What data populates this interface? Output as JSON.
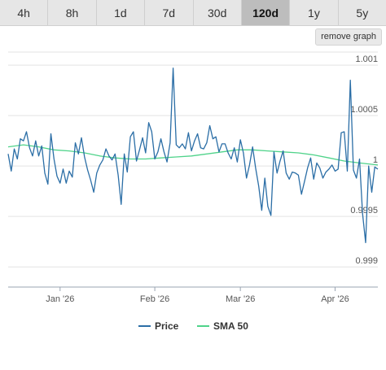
{
  "range_tabs": [
    {
      "label": "4h",
      "active": false
    },
    {
      "label": "8h",
      "active": false
    },
    {
      "label": "1d",
      "active": false
    },
    {
      "label": "7d",
      "active": false
    },
    {
      "label": "30d",
      "active": false
    },
    {
      "label": "120d",
      "active": true
    },
    {
      "label": "1y",
      "active": false
    },
    {
      "label": "5y",
      "active": false
    }
  ],
  "remove_graph_label": "remove graph",
  "colors": {
    "price": "#2b6ea6",
    "sma": "#4fd38a",
    "grid": "#e3e3e3",
    "active_tab": "#bdbdbd"
  },
  "chart_data": {
    "type": "line",
    "title": "",
    "xlabel": "",
    "ylabel": "",
    "ylim": [
      0.9988,
      1.00113
    ],
    "y_ticks": [
      {
        "value": 1.001,
        "label": "1.001"
      },
      {
        "value": 1.0005,
        "label": "1.0005"
      },
      {
        "value": 1.0,
        "label": "1"
      },
      {
        "value": 0.9995,
        "label": "0.9995"
      },
      {
        "value": 0.999,
        "label": "0.999"
      }
    ],
    "xlim": [
      "2025-12-15",
      "2026-04-15"
    ],
    "x_ticks": [
      {
        "date": "2026-01-01",
        "label": "Jan '26"
      },
      {
        "date": "2026-02-01",
        "label": "Feb '26"
      },
      {
        "date": "2026-03-01",
        "label": "Mar '26"
      },
      {
        "date": "2026-04-01",
        "label": "Apr '26"
      }
    ],
    "legend_position": "bottom",
    "series": [
      {
        "name": "Price",
        "x": [
          "2025-12-15",
          "2025-12-16",
          "2025-12-17",
          "2025-12-18",
          "2025-12-19",
          "2025-12-20",
          "2025-12-21",
          "2025-12-22",
          "2025-12-23",
          "2025-12-24",
          "2025-12-25",
          "2025-12-26",
          "2025-12-27",
          "2025-12-28",
          "2025-12-29",
          "2025-12-30",
          "2025-12-31",
          "2026-01-01",
          "2026-01-02",
          "2026-01-03",
          "2026-01-04",
          "2026-01-05",
          "2026-01-06",
          "2026-01-07",
          "2026-01-08",
          "2026-01-09",
          "2026-01-10",
          "2026-01-11",
          "2026-01-12",
          "2026-01-13",
          "2026-01-14",
          "2026-01-15",
          "2026-01-16",
          "2026-01-17",
          "2026-01-18",
          "2026-01-19",
          "2026-01-20",
          "2026-01-21",
          "2026-01-22",
          "2026-01-23",
          "2026-01-24",
          "2026-01-25",
          "2026-01-26",
          "2026-01-27",
          "2026-01-28",
          "2026-01-29",
          "2026-01-30",
          "2026-01-31",
          "2026-02-01",
          "2026-02-02",
          "2026-02-03",
          "2026-02-04",
          "2026-02-05",
          "2026-02-06",
          "2026-02-07",
          "2026-02-08",
          "2026-02-09",
          "2026-02-10",
          "2026-02-11",
          "2026-02-12",
          "2026-02-13",
          "2026-02-14",
          "2026-02-15",
          "2026-02-16",
          "2026-02-17",
          "2026-02-18",
          "2026-02-19",
          "2026-02-20",
          "2026-02-21",
          "2026-02-22",
          "2026-02-23",
          "2026-02-24",
          "2026-02-25",
          "2026-02-26",
          "2026-02-27",
          "2026-02-28",
          "2026-03-01",
          "2026-03-02",
          "2026-03-03",
          "2026-03-04",
          "2026-03-05",
          "2026-03-06",
          "2026-03-07",
          "2026-03-08",
          "2026-03-09",
          "2026-03-10",
          "2026-03-11",
          "2026-03-12",
          "2026-03-13",
          "2026-03-14",
          "2026-03-15",
          "2026-03-16",
          "2026-03-17",
          "2026-03-18",
          "2026-03-19",
          "2026-03-20",
          "2026-03-21",
          "2026-03-22",
          "2026-03-23",
          "2026-03-24",
          "2026-03-25",
          "2026-03-26",
          "2026-03-27",
          "2026-03-28",
          "2026-03-29",
          "2026-03-30",
          "2026-03-31",
          "2026-04-01",
          "2026-04-02",
          "2026-04-03",
          "2026-04-04",
          "2026-04-05",
          "2026-04-06",
          "2026-04-07",
          "2026-04-08",
          "2026-04-09",
          "2026-04-10",
          "2026-04-11",
          "2026-04-12",
          "2026-04-13",
          "2026-04-14",
          "2026-04-15"
        ],
        "values": [
          1.00012,
          0.99995,
          1.00017,
          1.00007,
          1.00027,
          1.00025,
          1.00034,
          1.00018,
          1.0001,
          1.00025,
          1.0001,
          1.0002,
          0.99993,
          0.99982,
          1.00032,
          1.00007,
          0.9999,
          0.99983,
          0.99997,
          0.99983,
          0.99995,
          0.99989,
          1.00023,
          1.00012,
          1.00028,
          1.00009,
          0.99996,
          0.99986,
          0.99974,
          0.99993,
          1.00001,
          1.00006,
          1.00017,
          1.0001,
          1.00006,
          1.00012,
          0.99991,
          0.99962,
          1.00012,
          0.99994,
          1.00029,
          1.00034,
          1.00005,
          1.00016,
          1.00028,
          1.00013,
          1.00043,
          1.00034,
          1.00007,
          1.00014,
          1.00027,
          1.00014,
          1.00004,
          1.00023,
          1.00097,
          1.00021,
          1.00018,
          1.00022,
          1.00017,
          1.00033,
          1.00015,
          1.00025,
          1.00032,
          1.00018,
          1.00017,
          1.00023,
          1.0004,
          1.00027,
          1.00029,
          1.00014,
          1.00022,
          1.00022,
          1.00013,
          1.00007,
          1.00018,
          1.00004,
          1.00026,
          1.00013,
          0.99988,
          1.00001,
          1.00019,
          0.99998,
          0.9998,
          0.99956,
          0.99988,
          0.9996,
          0.99951,
          1.00014,
          0.99993,
          1.00005,
          1.00015,
          0.99993,
          0.99987,
          0.99994,
          0.99993,
          0.99991,
          0.99972,
          0.99985,
          0.99998,
          1.00008,
          0.99987,
          1.00003,
          0.99998,
          0.99988,
          0.99994,
          0.99997,
          1.00001,
          0.99995,
          0.99997,
          1.00033,
          1.00034,
          0.99995,
          1.00085,
          0.99996,
          0.99988,
          1.00007,
          0.99953,
          0.99924,
          1.0,
          0.99974,
          0.99999,
          0.99997
        ]
      },
      {
        "name": "SMA 50",
        "x": [
          "2025-12-15",
          "2025-12-20",
          "2025-12-25",
          "2025-12-30",
          "2026-01-04",
          "2026-01-09",
          "2026-01-14",
          "2026-01-19",
          "2026-01-24",
          "2026-01-29",
          "2026-02-03",
          "2026-02-08",
          "2026-02-13",
          "2026-02-18",
          "2026-02-23",
          "2026-02-28",
          "2026-03-05",
          "2026-03-10",
          "2026-03-15",
          "2026-03-20",
          "2026-03-25",
          "2026-03-30",
          "2026-04-04",
          "2026-04-09",
          "2026-04-15"
        ],
        "values": [
          1.00019,
          1.00021,
          1.00019,
          1.00016,
          1.00015,
          1.00013,
          1.0001,
          1.00008,
          1.00007,
          1.00007,
          1.00008,
          1.00009,
          1.0001,
          1.00012,
          1.00014,
          1.00016,
          1.00016,
          1.00015,
          1.00014,
          1.00013,
          1.00011,
          1.00008,
          1.00005,
          1.00003,
          1.00001
        ]
      }
    ]
  }
}
